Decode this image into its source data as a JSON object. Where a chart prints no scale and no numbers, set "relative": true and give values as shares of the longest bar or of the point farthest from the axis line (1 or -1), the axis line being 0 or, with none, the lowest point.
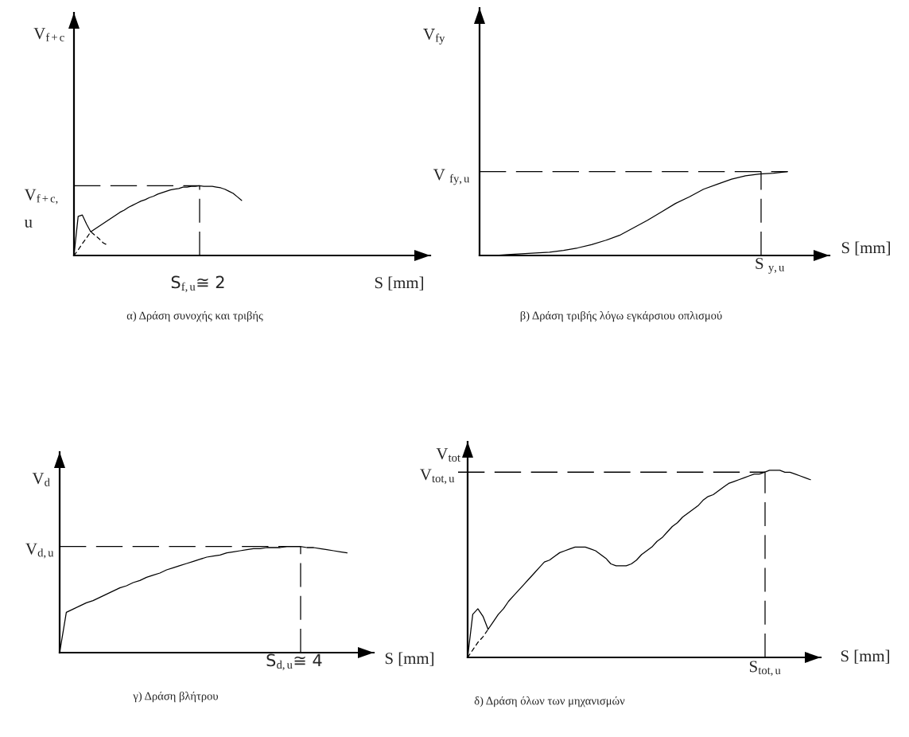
{
  "chart_data": [
    {
      "type": "line",
      "relative": true,
      "title": "α) Δράση συνοχής και τριβής",
      "xlabel": "S [mm]",
      "ylabel": "V$_{f+c}$",
      "categories": [
        null,
        null,
        null,
        null,
        null,
        null,
        null,
        null,
        null,
        null,
        null,
        null,
        null,
        null,
        null,
        null,
        null,
        null,
        null,
        null,
        null,
        null,
        null,
        null,
        null,
        null,
        null,
        null,
        null,
        null,
        null,
        null,
        null,
        null,
        null,
        null,
        null,
        null,
        null,
        null,
        null,
        null,
        null,
        null,
        null,
        null,
        null,
        null,
        null,
        null,
        null,
        null,
        null,
        null,
        null,
        null,
        null,
        null,
        null,
        null,
        null,
        null,
        null,
        null,
        null,
        null,
        null,
        null,
        null,
        null,
        null,
        null,
        null,
        null,
        null,
        null,
        null,
        null,
        null,
        null,
        null,
        null,
        null,
        null,
        null,
        null
      ],
      "series": [
        {
          "color": "#000000",
          "line_style": "solid",
          "values": [
            0,
            0.56,
            0.58,
            0.45,
            0.34,
            0.38,
            0.42,
            0.46,
            0.5,
            0.54,
            0.58,
            0.62,
            0.65,
            0.69,
            0.72,
            0.75,
            0.78,
            0.8,
            0.83,
            0.85,
            0.88,
            0.9,
            0.92,
            0.94,
            0.95,
            0.96,
            0.98,
            0.98,
            0.99,
            0.99,
            1.0,
            0.99,
            0.99,
            0.99,
            0.98,
            0.97,
            0.95,
            0.92,
            0.89,
            0.84,
            0.79,
            null,
            null,
            null,
            null,
            null,
            null,
            null,
            null,
            null,
            null,
            null,
            null,
            null,
            null,
            null,
            null,
            null,
            null,
            null,
            null,
            null,
            null,
            null,
            null,
            null,
            null,
            null,
            null,
            null,
            null,
            null,
            null,
            null,
            null,
            null,
            null,
            null,
            null,
            null,
            null,
            null,
            null,
            null,
            null,
            null
          ]
        },
        {
          "color": "#000000",
          "line_style": "dashed",
          "values": [
            0,
            0.08,
            0.17,
            0.25,
            0.34,
            0.29,
            0.24,
            0.18,
            0.15,
            null,
            null,
            null,
            null,
            null,
            null,
            null,
            null,
            null,
            null,
            null,
            null,
            null,
            null,
            null,
            null,
            null,
            null,
            null,
            null,
            null,
            null,
            null,
            null,
            null,
            null,
            null,
            null,
            null,
            null,
            null,
            null,
            null,
            null,
            null,
            null,
            null,
            null,
            null,
            null,
            null,
            null,
            null,
            null,
            null,
            null,
            null,
            null,
            null,
            null,
            null,
            null,
            null,
            null,
            null,
            null,
            null,
            null,
            null,
            null,
            null,
            null,
            null,
            null,
            null,
            null,
            null,
            null,
            null,
            null,
            null,
            null,
            null,
            null,
            null,
            null,
            null
          ]
        }
      ],
      "ref_lines": [
        {
          "axis": "y",
          "value": 1.0,
          "label": "V$_{f+c,}$\nu",
          "line_style": "dashed"
        }
      ],
      "annotations": [
        "S$_{f,u}$≅ 2"
      ]
    },
    {
      "type": "line",
      "relative": true,
      "title": "β) Δράση τριβής λόγω εγκάρσιου οπλισμού",
      "xlabel": "S [mm]",
      "ylabel": "V$_{fy}$",
      "categories": [
        null,
        null,
        null,
        null,
        null,
        null,
        null,
        null,
        null,
        null,
        null,
        null,
        null,
        null,
        null,
        null,
        null,
        null,
        null,
        null,
        null,
        null,
        null,
        null,
        null,
        null
      ],
      "series": [
        {
          "color": "#000000",
          "line_style": "solid",
          "values": [
            0,
            0.0,
            0.01,
            0.02,
            0.03,
            0.04,
            0.06,
            0.09,
            0.13,
            0.18,
            0.24,
            0.33,
            0.42,
            0.52,
            0.62,
            0.7,
            0.79,
            0.85,
            0.91,
            0.95,
            0.97,
            0.98,
            1.0,
            null,
            null,
            null
          ]
        }
      ],
      "ref_lines": [
        {
          "axis": "y",
          "value": 1.0,
          "label": "V $_{fy,u}$",
          "line_style": "dashed"
        }
      ],
      "annotations": [
        "S $_{y,u}$"
      ]
    },
    {
      "type": "line",
      "relative": true,
      "title": "γ) Δράση βλήτρου",
      "xlabel": "S [mm]",
      "ylabel": "V$_{d}$",
      "categories": [
        null,
        null,
        null,
        null,
        null,
        null,
        null,
        null,
        null,
        null,
        null,
        null,
        null,
        null,
        null,
        null,
        null,
        null,
        null,
        null,
        null,
        null,
        null,
        null,
        null,
        null,
        null,
        null,
        null,
        null,
        null,
        null,
        null,
        null,
        null,
        null,
        null,
        null,
        null,
        null,
        null,
        null,
        null,
        null,
        null,
        null,
        null,
        null
      ],
      "series": [
        {
          "color": "#000000",
          "line_style": "solid",
          "values": [
            0,
            0.38,
            0.41,
            0.44,
            0.47,
            0.49,
            0.52,
            0.55,
            0.58,
            0.61,
            0.63,
            0.66,
            0.68,
            0.71,
            0.73,
            0.75,
            0.78,
            0.8,
            0.82,
            0.84,
            0.86,
            0.88,
            0.9,
            0.91,
            0.92,
            0.94,
            0.95,
            0.96,
            0.97,
            0.98,
            0.98,
            0.99,
            0.99,
            0.99,
            1.0,
            1.0,
            1.0,
            0.99,
            0.99,
            0.98,
            0.97,
            0.96,
            0.95,
            0.94,
            null,
            null,
            null,
            null
          ]
        }
      ],
      "ref_lines": [
        {
          "axis": "y",
          "value": 1.0,
          "label": "V$_{d,u}$",
          "line_style": "dashed"
        }
      ],
      "annotations": [
        "S$_{d,u}$≅ 4"
      ]
    },
    {
      "type": "line",
      "relative": true,
      "title": "δ) Δράση όλων των μηχανισμών",
      "xlabel": "S [mm]",
      "ylabel": "V$_{tot}$",
      "categories": [
        null,
        null,
        null,
        null,
        null,
        null,
        null,
        null,
        null,
        null,
        null,
        null,
        null,
        null,
        null,
        null,
        null,
        null,
        null,
        null,
        null,
        null,
        null,
        null,
        null,
        null,
        null,
        null,
        null,
        null,
        null,
        null,
        null,
        null,
        null,
        null,
        null,
        null,
        null,
        null,
        null,
        null,
        null,
        null,
        null,
        null,
        null,
        null,
        null,
        null,
        null,
        null,
        null,
        null,
        null,
        null,
        null,
        null,
        null,
        null,
        null,
        null,
        null,
        null,
        null,
        null,
        null,
        null,
        null,
        null
      ],
      "series": [
        {
          "color": "#000000",
          "line_style": "solid",
          "values": [
            0,
            0.23,
            0.26,
            0.22,
            0.15,
            0.19,
            0.23,
            0.26,
            0.3,
            0.33,
            0.36,
            0.39,
            0.42,
            0.45,
            0.48,
            0.51,
            0.52,
            0.54,
            0.56,
            0.57,
            0.58,
            0.59,
            0.59,
            0.59,
            0.58,
            0.57,
            0.55,
            0.53,
            0.5,
            0.49,
            0.49,
            0.49,
            0.5,
            0.52,
            0.55,
            0.57,
            0.59,
            0.62,
            0.64,
            0.67,
            0.7,
            0.72,
            0.75,
            0.77,
            0.79,
            0.81,
            0.84,
            0.86,
            0.87,
            0.89,
            0.91,
            0.93,
            0.94,
            0.95,
            0.96,
            0.97,
            0.98,
            0.98,
            0.99,
            1.0,
            1.0,
            1.0,
            0.99,
            0.99,
            0.98,
            0.97,
            0.96,
            0.95,
            null,
            null
          ]
        },
        {
          "color": "#000000",
          "line_style": "dashed",
          "values": [
            0,
            0.04,
            0.08,
            0.11,
            0.15,
            null,
            null,
            null,
            null,
            null,
            null,
            null,
            null,
            null,
            null,
            null,
            null,
            null,
            null,
            null,
            null,
            null,
            null,
            null,
            null,
            null,
            null,
            null,
            null,
            null,
            null,
            null,
            null,
            null,
            null,
            null,
            null,
            null,
            null,
            null,
            null,
            null,
            null,
            null,
            null,
            null,
            null,
            null,
            null,
            null,
            null,
            null,
            null,
            null,
            null,
            null,
            null,
            null,
            null,
            null,
            null,
            null,
            null,
            null,
            null,
            null,
            null,
            null,
            null,
            null
          ]
        }
      ],
      "ref_lines": [
        {
          "axis": "y",
          "value": 0.99,
          "label": "V$_{tot,u}$",
          "line_style": "dashed"
        }
      ],
      "annotations": [
        "S$_{tot,u}$"
      ]
    }
  ]
}
